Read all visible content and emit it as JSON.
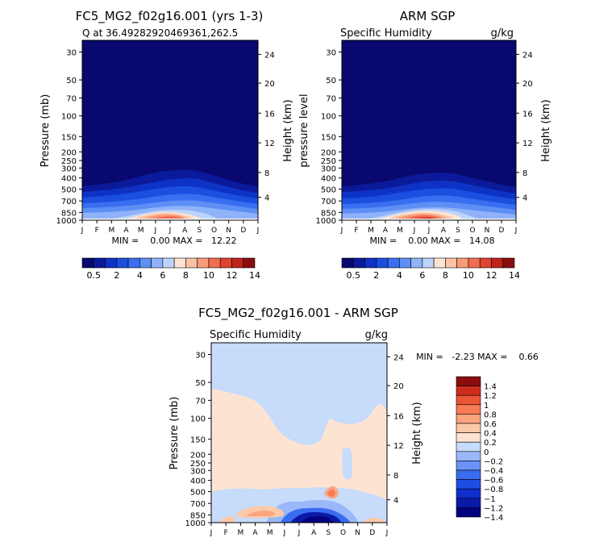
{
  "panels": [
    {
      "id": "model",
      "title": "FC5_MG2_f02g16.001 (yrs 1-3)",
      "left_label": "Q at 36.49282920469361,262.5",
      "right_label": "",
      "ylabel": "Pressure (mb)",
      "ylabel2": "Height (km)",
      "minmax": "MIN =    0.00 MAX =   12.22"
    },
    {
      "id": "obs",
      "title": "ARM SGP",
      "left_label": "Specific Humidity",
      "right_label": "g/kg",
      "ylabel": "pressure level",
      "ylabel2": "Height (km)",
      "minmax": "MIN =    0.00 MAX =   14.08"
    },
    {
      "id": "diff",
      "title": "FC5_MG2_f02g16.001 - ARM SGP",
      "left_label": "Specific Humidity",
      "right_label": "g/kg",
      "ylabel": "Pressure (mb)",
      "ylabel2": "Height (km)",
      "minmax": "MIN =   -2.23 MAX =    0.66"
    }
  ],
  "colors": {
    "abs_scale": [
      "#08086e",
      "#0a1a9a",
      "#0e33c4",
      "#1a4fe0",
      "#3a6ef0",
      "#5d8ff5",
      "#8fb2f8",
      "#bcd3fb",
      "#fde4d2",
      "#fcc2a4",
      "#f99a78",
      "#f26d4f",
      "#e0432e",
      "#c0221c",
      "#8b0e0e"
    ],
    "diff_scale": [
      "#030380",
      "#0a1aa6",
      "#1030cc",
      "#1e4de6",
      "#3a6cf0",
      "#6a93f5",
      "#9ab8f9",
      "#c7dbfb",
      "#fde4d2",
      "#fcc9a8",
      "#fba57e",
      "#f77c56",
      "#ea5536",
      "#cc2d1c",
      "#8b0d0d"
    ]
  },
  "chart_data": [
    {
      "type": "heatmap",
      "title": "FC5_MG2_f02g16.001 (yrs 1-3)",
      "subtitle": "Q at 36.49282920469361,262.5",
      "x": [
        "J",
        "F",
        "M",
        "A",
        "M",
        "J",
        "J",
        "A",
        "S",
        "O",
        "N",
        "D",
        "J"
      ],
      "xlabel": "",
      "ylabel": "Pressure (mb)",
      "ylabel_right": "Height (km)",
      "yticks": [
        30,
        50,
        70,
        100,
        150,
        200,
        250,
        300,
        400,
        500,
        700,
        850,
        1000
      ],
      "yticks_right": [
        4,
        8,
        12,
        16,
        20,
        24
      ],
      "zmin": 0.0,
      "zmax": 12.22,
      "levels": [
        0.5,
        1,
        2,
        3,
        4,
        5,
        6,
        7,
        8,
        9,
        10,
        11,
        12,
        13,
        14
      ]
    },
    {
      "type": "heatmap",
      "title": "ARM SGP",
      "subtitle": "Specific Humidity",
      "units": "g/kg",
      "x": [
        "J",
        "F",
        "M",
        "A",
        "M",
        "J",
        "J",
        "A",
        "S",
        "O",
        "N",
        "D",
        "J"
      ],
      "ylabel": "pressure level",
      "ylabel_right": "Height (km)",
      "yticks": [
        30,
        50,
        70,
        100,
        150,
        200,
        250,
        300,
        400,
        500,
        700,
        850,
        1000
      ],
      "yticks_right": [
        4,
        8,
        12,
        16,
        20,
        24
      ],
      "zmin": 0.0,
      "zmax": 14.08,
      "levels": [
        0.5,
        1,
        2,
        3,
        4,
        5,
        6,
        7,
        8,
        9,
        10,
        11,
        12,
        13,
        14
      ]
    },
    {
      "type": "heatmap",
      "title": "FC5_MG2_f02g16.001 - ARM SGP",
      "subtitle": "Specific Humidity",
      "units": "g/kg",
      "x": [
        "J",
        "F",
        "M",
        "A",
        "M",
        "J",
        "J",
        "A",
        "S",
        "O",
        "N",
        "D",
        "J"
      ],
      "ylabel": "Pressure (mb)",
      "ylabel_right": "Height (km)",
      "yticks": [
        30,
        50,
        70,
        100,
        150,
        200,
        250,
        300,
        400,
        500,
        700,
        850,
        1000
      ],
      "yticks_right": [
        4,
        8,
        12,
        16,
        20,
        24
      ],
      "zmin": -2.23,
      "zmax": 0.66,
      "levels": [
        -1.4,
        -1.2,
        -1,
        -0.8,
        -0.6,
        -0.4,
        -0.2,
        0,
        0.2,
        0.4,
        0.6,
        0.8,
        1,
        1.2,
        1.4
      ]
    }
  ],
  "colorbars": {
    "abs_labels": [
      "0.5",
      "2",
      "4",
      "6",
      "8",
      "10",
      "12",
      "14"
    ],
    "diff_labels": [
      "1.4",
      "1.2",
      "1",
      "0.8",
      "0.6",
      "0.4",
      "0.2",
      "0",
      "−0.2",
      "−0.4",
      "−0.6",
      "−0.8",
      "−1",
      "−1.2",
      "−1.4"
    ]
  }
}
